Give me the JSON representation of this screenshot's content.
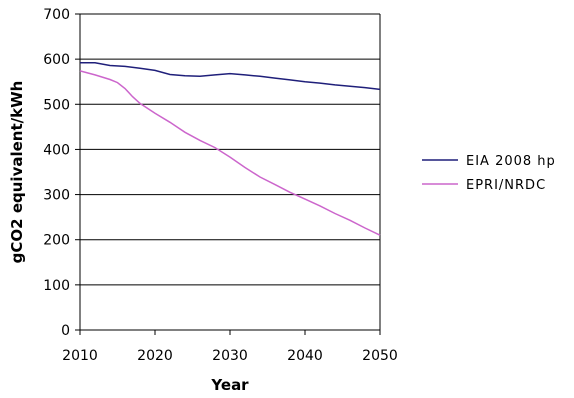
{
  "chart_data": {
    "type": "line",
    "xlabel": "Year",
    "ylabel": "gCO2 equivalent/kWh",
    "xlim": [
      2010,
      2050
    ],
    "ylim": [
      0,
      700
    ],
    "x_ticks": [
      2010,
      2020,
      2030,
      2040,
      2050
    ],
    "y_ticks": [
      0,
      100,
      200,
      300,
      400,
      500,
      600,
      700
    ],
    "grid": "horizontal",
    "legend_position": "right",
    "series": [
      {
        "name": "EIA 2008 hp",
        "color": "#1f1f7a",
        "points": [
          [
            2010,
            592
          ],
          [
            2012,
            592
          ],
          [
            2014,
            586
          ],
          [
            2016,
            584
          ],
          [
            2018,
            580
          ],
          [
            2020,
            575
          ],
          [
            2022,
            566
          ],
          [
            2024,
            563
          ],
          [
            2026,
            562
          ],
          [
            2028,
            565
          ],
          [
            2030,
            568
          ],
          [
            2032,
            565
          ],
          [
            2034,
            562
          ],
          [
            2036,
            558
          ],
          [
            2038,
            554
          ],
          [
            2040,
            550
          ],
          [
            2042,
            547
          ],
          [
            2044,
            543
          ],
          [
            2046,
            540
          ],
          [
            2048,
            537
          ],
          [
            2050,
            533
          ]
        ]
      },
      {
        "name": "EPRI/NRDC",
        "color": "#cc66cc",
        "points": [
          [
            2010,
            574
          ],
          [
            2012,
            565
          ],
          [
            2014,
            555
          ],
          [
            2015,
            548
          ],
          [
            2016,
            535
          ],
          [
            2017,
            517
          ],
          [
            2018,
            502
          ],
          [
            2020,
            480
          ],
          [
            2022,
            460
          ],
          [
            2024,
            438
          ],
          [
            2026,
            420
          ],
          [
            2028,
            404
          ],
          [
            2030,
            383
          ],
          [
            2032,
            360
          ],
          [
            2034,
            339
          ],
          [
            2036,
            322
          ],
          [
            2038,
            305
          ],
          [
            2040,
            290
          ],
          [
            2042,
            275
          ],
          [
            2044,
            258
          ],
          [
            2046,
            243
          ],
          [
            2048,
            226
          ],
          [
            2050,
            210
          ]
        ]
      }
    ]
  }
}
